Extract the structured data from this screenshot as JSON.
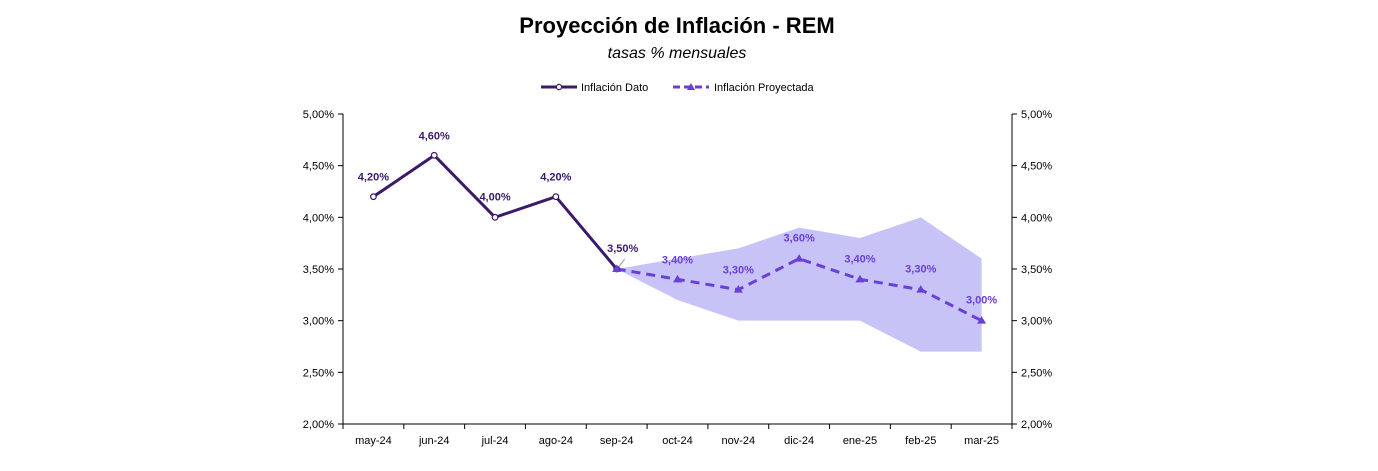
{
  "colors": {
    "dato": "#3b1a6b",
    "proyectada": "#6a3fd8",
    "band": "#c7c3f7",
    "axis": "#000000"
  },
  "chart_data": {
    "type": "line",
    "title": "Proyección de Inflación - REM",
    "subtitle": "tasas % mensuales",
    "categories": [
      "may-24",
      "jun-24",
      "jul-24",
      "ago-24",
      "sep-24",
      "oct-24",
      "nov-24",
      "dic-24",
      "ene-25",
      "feb-25",
      "mar-25"
    ],
    "ylim": [
      2.0,
      5.0
    ],
    "yticks": [
      2.0,
      2.5,
      3.0,
      3.5,
      4.0,
      4.5,
      5.0
    ],
    "ytick_labels": [
      "2,00%",
      "2,50%",
      "3,00%",
      "3,50%",
      "4,00%",
      "4,50%",
      "5,00%"
    ],
    "secondary_y_axis": true,
    "grid": false,
    "legend_position": "top-center",
    "series": [
      {
        "name": "Inflación Dato",
        "style": "solid",
        "marker": "circle",
        "values": [
          4.2,
          4.6,
          4.0,
          4.2,
          3.5,
          null,
          null,
          null,
          null,
          null,
          null
        ],
        "labels": [
          "4,20%",
          "4,60%",
          "4,00%",
          "4,20%",
          "",
          "",
          "",
          "",
          "",
          "",
          ""
        ]
      },
      {
        "name": "Inflación Proyectada",
        "style": "dashed",
        "marker": "triangle",
        "values": [
          null,
          null,
          null,
          null,
          3.5,
          3.4,
          3.3,
          3.6,
          3.4,
          3.3,
          3.0
        ],
        "labels": [
          "",
          "",
          "",
          "",
          "3,50%",
          "3,40%",
          "3,30%",
          "3,60%",
          "3,40%",
          "3,30%",
          "3,00%"
        ]
      }
    ],
    "band": {
      "upper": [
        null,
        null,
        null,
        null,
        3.5,
        3.6,
        3.7,
        3.9,
        3.8,
        4.0,
        3.6
      ],
      "lower": [
        null,
        null,
        null,
        null,
        3.5,
        3.2,
        3.0,
        3.0,
        3.0,
        2.7,
        2.7
      ]
    }
  }
}
